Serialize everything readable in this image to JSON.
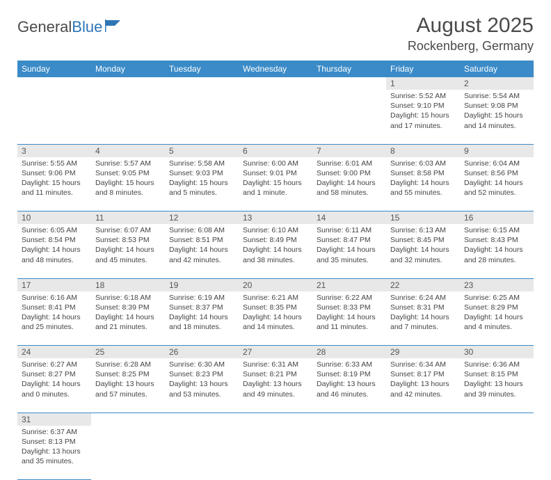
{
  "logo": {
    "text1": "General",
    "text2": "Blue"
  },
  "title": "August 2025",
  "location": "Rockenberg, Germany",
  "weekdays": [
    "Sunday",
    "Monday",
    "Tuesday",
    "Wednesday",
    "Thursday",
    "Friday",
    "Saturday"
  ],
  "colors": {
    "header_bg": "#3b8bc8",
    "header_text": "#ffffff",
    "daynum_bg": "#e8e8e8",
    "border": "#3b8bc8",
    "logo_blue": "#2e75b6",
    "text": "#4a4a4a"
  },
  "weeks": [
    [
      null,
      null,
      null,
      null,
      null,
      {
        "n": "1",
        "sunrise": "5:52 AM",
        "sunset": "9:10 PM",
        "daylight": "15 hours and 17 minutes."
      },
      {
        "n": "2",
        "sunrise": "5:54 AM",
        "sunset": "9:08 PM",
        "daylight": "15 hours and 14 minutes."
      }
    ],
    [
      {
        "n": "3",
        "sunrise": "5:55 AM",
        "sunset": "9:06 PM",
        "daylight": "15 hours and 11 minutes."
      },
      {
        "n": "4",
        "sunrise": "5:57 AM",
        "sunset": "9:05 PM",
        "daylight": "15 hours and 8 minutes."
      },
      {
        "n": "5",
        "sunrise": "5:58 AM",
        "sunset": "9:03 PM",
        "daylight": "15 hours and 5 minutes."
      },
      {
        "n": "6",
        "sunrise": "6:00 AM",
        "sunset": "9:01 PM",
        "daylight": "15 hours and 1 minute."
      },
      {
        "n": "7",
        "sunrise": "6:01 AM",
        "sunset": "9:00 PM",
        "daylight": "14 hours and 58 minutes."
      },
      {
        "n": "8",
        "sunrise": "6:03 AM",
        "sunset": "8:58 PM",
        "daylight": "14 hours and 55 minutes."
      },
      {
        "n": "9",
        "sunrise": "6:04 AM",
        "sunset": "8:56 PM",
        "daylight": "14 hours and 52 minutes."
      }
    ],
    [
      {
        "n": "10",
        "sunrise": "6:05 AM",
        "sunset": "8:54 PM",
        "daylight": "14 hours and 48 minutes."
      },
      {
        "n": "11",
        "sunrise": "6:07 AM",
        "sunset": "8:53 PM",
        "daylight": "14 hours and 45 minutes."
      },
      {
        "n": "12",
        "sunrise": "6:08 AM",
        "sunset": "8:51 PM",
        "daylight": "14 hours and 42 minutes."
      },
      {
        "n": "13",
        "sunrise": "6:10 AM",
        "sunset": "8:49 PM",
        "daylight": "14 hours and 38 minutes."
      },
      {
        "n": "14",
        "sunrise": "6:11 AM",
        "sunset": "8:47 PM",
        "daylight": "14 hours and 35 minutes."
      },
      {
        "n": "15",
        "sunrise": "6:13 AM",
        "sunset": "8:45 PM",
        "daylight": "14 hours and 32 minutes."
      },
      {
        "n": "16",
        "sunrise": "6:15 AM",
        "sunset": "8:43 PM",
        "daylight": "14 hours and 28 minutes."
      }
    ],
    [
      {
        "n": "17",
        "sunrise": "6:16 AM",
        "sunset": "8:41 PM",
        "daylight": "14 hours and 25 minutes."
      },
      {
        "n": "18",
        "sunrise": "6:18 AM",
        "sunset": "8:39 PM",
        "daylight": "14 hours and 21 minutes."
      },
      {
        "n": "19",
        "sunrise": "6:19 AM",
        "sunset": "8:37 PM",
        "daylight": "14 hours and 18 minutes."
      },
      {
        "n": "20",
        "sunrise": "6:21 AM",
        "sunset": "8:35 PM",
        "daylight": "14 hours and 14 minutes."
      },
      {
        "n": "21",
        "sunrise": "6:22 AM",
        "sunset": "8:33 PM",
        "daylight": "14 hours and 11 minutes."
      },
      {
        "n": "22",
        "sunrise": "6:24 AM",
        "sunset": "8:31 PM",
        "daylight": "14 hours and 7 minutes."
      },
      {
        "n": "23",
        "sunrise": "6:25 AM",
        "sunset": "8:29 PM",
        "daylight": "14 hours and 4 minutes."
      }
    ],
    [
      {
        "n": "24",
        "sunrise": "6:27 AM",
        "sunset": "8:27 PM",
        "daylight": "14 hours and 0 minutes."
      },
      {
        "n": "25",
        "sunrise": "6:28 AM",
        "sunset": "8:25 PM",
        "daylight": "13 hours and 57 minutes."
      },
      {
        "n": "26",
        "sunrise": "6:30 AM",
        "sunset": "8:23 PM",
        "daylight": "13 hours and 53 minutes."
      },
      {
        "n": "27",
        "sunrise": "6:31 AM",
        "sunset": "8:21 PM",
        "daylight": "13 hours and 49 minutes."
      },
      {
        "n": "28",
        "sunrise": "6:33 AM",
        "sunset": "8:19 PM",
        "daylight": "13 hours and 46 minutes."
      },
      {
        "n": "29",
        "sunrise": "6:34 AM",
        "sunset": "8:17 PM",
        "daylight": "13 hours and 42 minutes."
      },
      {
        "n": "30",
        "sunrise": "6:36 AM",
        "sunset": "8:15 PM",
        "daylight": "13 hours and 39 minutes."
      }
    ],
    [
      {
        "n": "31",
        "sunrise": "6:37 AM",
        "sunset": "8:13 PM",
        "daylight": "13 hours and 35 minutes."
      },
      null,
      null,
      null,
      null,
      null,
      null
    ]
  ],
  "labels": {
    "sunrise": "Sunrise: ",
    "sunset": "Sunset: ",
    "daylight": "Daylight: "
  }
}
